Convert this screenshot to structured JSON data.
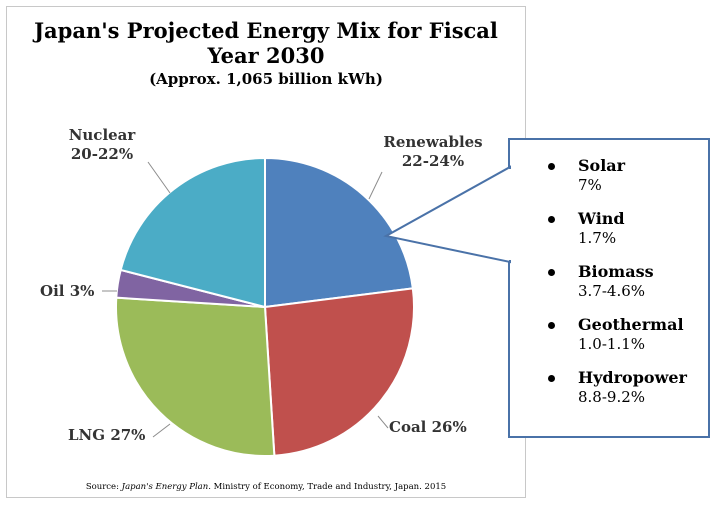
{
  "chart_data": {
    "type": "pie",
    "title": "Japan's Projected Energy Mix for Fiscal Year 2030",
    "subtitle": "(Approx. 1,065 billion kWh)",
    "slices": [
      {
        "name": "Renewables",
        "label": "22-24%",
        "value": 23,
        "color": "#4f81bd"
      },
      {
        "name": "Coal",
        "label": "26%",
        "value": 26,
        "color": "#c0504d"
      },
      {
        "name": "LNG",
        "label": "27%",
        "value": 27,
        "color": "#9bbb59"
      },
      {
        "name": "Oil",
        "label": "3%",
        "value": 3,
        "color": "#8064a2"
      },
      {
        "name": "Nuclear",
        "label": "20-22%",
        "value": 21,
        "color": "#4bacc6"
      }
    ],
    "renewables_breakdown": [
      {
        "name": "Solar",
        "value": "7%"
      },
      {
        "name": "Wind",
        "value": "1.7%"
      },
      {
        "name": "Biomass",
        "value": "3.7-4.6%"
      },
      {
        "name": "Geothermal",
        "value": "1.0-1.1%"
      },
      {
        "name": "Hydropower",
        "value": "8.8-9.2%"
      }
    ]
  },
  "source": {
    "prefix": "Source: ",
    "publication": "Japan's Energy Plan",
    "rest": ". Ministry of Economy, Trade and Industry, Japan. 2015"
  }
}
